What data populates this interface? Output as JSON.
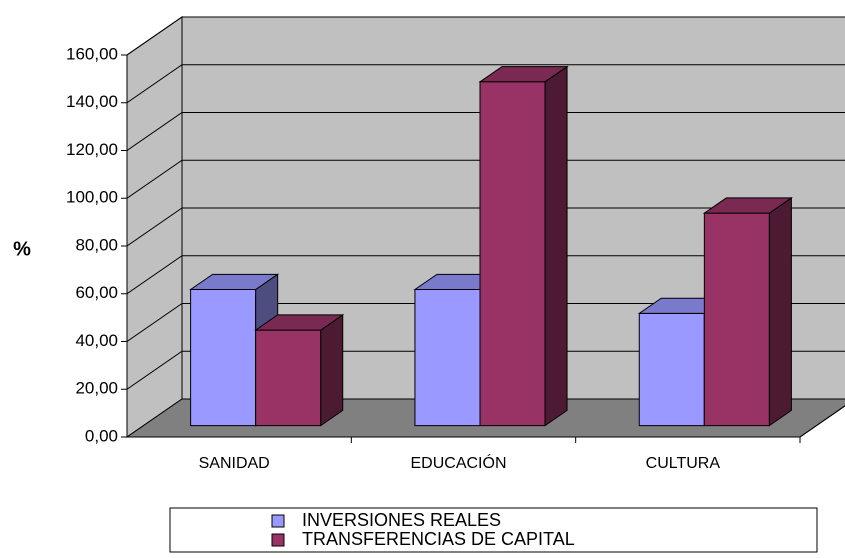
{
  "chart_data": {
    "type": "bar3d",
    "y_label": "%",
    "categories": [
      "SANIDAD",
      "EDUCACIÓN",
      "CULTURA"
    ],
    "series": [
      {
        "name": "INVERSIONES REALES",
        "color": "#9999ff",
        "values": [
          57,
          57,
          47
        ]
      },
      {
        "name": "TRANSFERENCIAS DE CAPITAL",
        "color": "#993366",
        "values": [
          40,
          144,
          89
        ]
      }
    ],
    "ylim": [
      0,
      160
    ],
    "yticks": [
      {
        "value": 0,
        "label": "0,00"
      },
      {
        "value": 20,
        "label": "20,00"
      },
      {
        "value": 40,
        "label": "40,00"
      },
      {
        "value": 60,
        "label": "60,00"
      },
      {
        "value": 80,
        "label": "80,00"
      },
      {
        "value": 100,
        "label": "100,00"
      },
      {
        "value": 120,
        "label": "120,00"
      },
      {
        "value": 140,
        "label": "140,00"
      },
      {
        "value": 160,
        "label": "160,00"
      }
    ],
    "grid": true
  }
}
